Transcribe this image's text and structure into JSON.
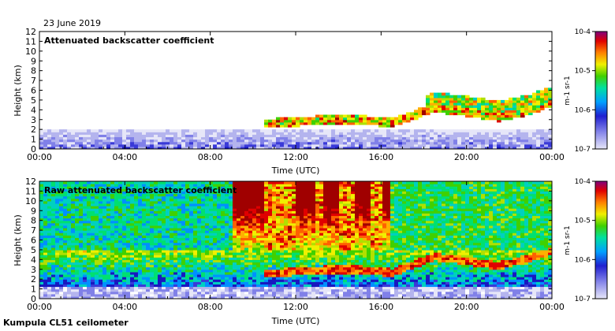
{
  "header": {
    "date": "23 June 2019"
  },
  "footer": {
    "site": "Kumpula CL51 ceilometer"
  },
  "chart_data": [
    {
      "type": "heatmap",
      "title": "Attenuated backscatter coefficient",
      "xlabel": "Time (UTC)",
      "ylabel": "Height (km)",
      "xlim": [
        0,
        24
      ],
      "ylim": [
        0,
        12
      ],
      "x_tick_labels": [
        "00:00",
        "04:00",
        "08:00",
        "12:00",
        "16:00",
        "20:00",
        "00:00"
      ],
      "y_tick_labels": [
        "0",
        "1",
        "2",
        "3",
        "4",
        "5",
        "6",
        "7",
        "8",
        "9",
        "10",
        "11",
        "12"
      ],
      "colorbar": {
        "scale": "log",
        "range": [
          1e-07,
          0.0001
        ],
        "tick_labels": [
          "10-7",
          "10-6",
          "10-5",
          "10-4"
        ],
        "unit_label": "m-1 sr-1"
      },
      "features": {
        "near_surface_backscatter_top_km": 2.0,
        "cloud_layer": [
          {
            "t": 10.5,
            "h": 2.6
          },
          {
            "t": 12.0,
            "h": 2.8
          },
          {
            "t": 13.5,
            "h": 3.0
          },
          {
            "t": 15.0,
            "h": 3.0
          },
          {
            "t": 16.5,
            "h": 2.7
          },
          {
            "t": 18.5,
            "h": 4.2
          },
          {
            "t": 20.0,
            "h": 3.8
          },
          {
            "t": 21.5,
            "h": 3.3
          },
          {
            "t": 23.0,
            "h": 4.0
          },
          {
            "t": 24.0,
            "h": 4.8
          }
        ]
      }
    },
    {
      "type": "heatmap",
      "title": "Raw attenuated backscatter coefficient",
      "xlabel": "Time (UTC)",
      "ylabel": "Height (km)",
      "xlim": [
        0,
        24
      ],
      "ylim": [
        0,
        12
      ],
      "x_tick_labels": [
        "00:00",
        "04:00",
        "08:00",
        "12:00",
        "16:00",
        "20:00",
        "00:00"
      ],
      "y_tick_labels": [
        "0",
        "1",
        "2",
        "3",
        "4",
        "5",
        "6",
        "7",
        "8",
        "9",
        "10",
        "11",
        "12"
      ],
      "colorbar": {
        "scale": "log",
        "range": [
          1e-07,
          0.0001
        ],
        "tick_labels": [
          "10-7",
          "10-6",
          "10-5",
          "10-4"
        ],
        "unit_label": "m-1 sr-1"
      },
      "features": {
        "noisy_bands_hours": [
          [
            10.5,
            12.0
          ],
          [
            12.9,
            13.3
          ],
          [
            14.0,
            14.8
          ],
          [
            15.5,
            16.0
          ]
        ],
        "cloud_layer": [
          {
            "t": 10.5,
            "h": 2.6
          },
          {
            "t": 12.0,
            "h": 2.8
          },
          {
            "t": 13.5,
            "h": 3.0
          },
          {
            "t": 15.0,
            "h": 3.0
          },
          {
            "t": 16.5,
            "h": 2.7
          },
          {
            "t": 18.5,
            "h": 4.3
          },
          {
            "t": 20.0,
            "h": 3.9
          },
          {
            "t": 21.5,
            "h": 3.4
          },
          {
            "t": 23.0,
            "h": 4.2
          },
          {
            "t": 24.0,
            "h": 4.9
          }
        ]
      }
    }
  ]
}
